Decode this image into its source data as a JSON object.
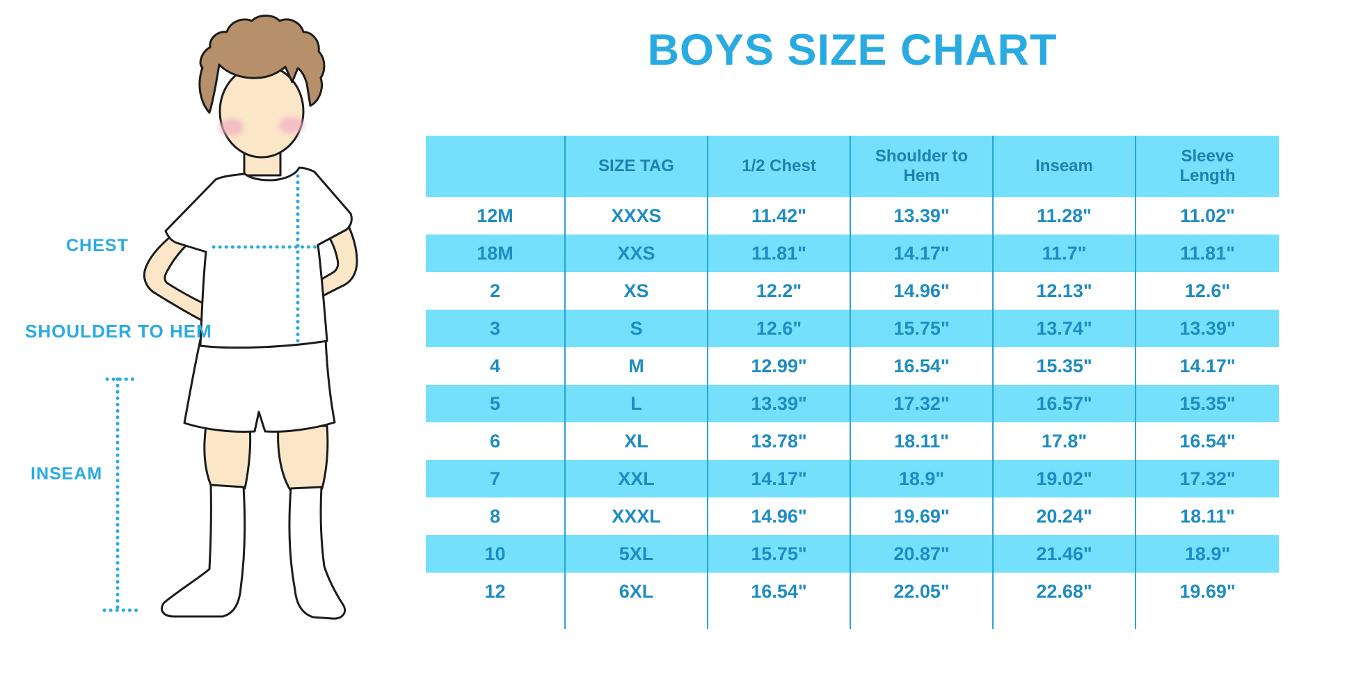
{
  "title": "BOYS SIZE CHART",
  "diagram": {
    "labels": {
      "chest": "CHEST",
      "shoulder_to_hem": "SHOULDER TO HEM",
      "inseam": "INSEAM"
    },
    "figure": "boy-in-tshirt-shorts-and-knee-socks"
  },
  "colors": {
    "title_blue": "#29ABE2",
    "label_blue": "#29ABE2",
    "table_stripe": "#74E0FB",
    "table_grid": "#2AA4D6",
    "table_header_text": "#1F80B0",
    "table_body_text": "#1E8CC2",
    "skin": "#FBE7C8",
    "hair": "#B5906B",
    "blush": "#F2B3C4",
    "outline": "#1C1C1C"
  },
  "chart_data": {
    "type": "table",
    "title": "BOYS SIZE CHART",
    "columns": [
      "",
      "SIZE TAG",
      "1/2 Chest",
      "Shoulder to Hem",
      "Inseam",
      "Sleeve Length"
    ],
    "rows": [
      [
        "12M",
        "XXXS",
        "11.42\"",
        "13.39\"",
        "11.28\"",
        "11.02\""
      ],
      [
        "18M",
        "XXS",
        "11.81\"",
        "14.17\"",
        "11.7\"",
        "11.81\""
      ],
      [
        "2",
        "XS",
        "12.2\"",
        "14.96\"",
        "12.13\"",
        "12.6\""
      ],
      [
        "3",
        "S",
        "12.6\"",
        "15.75\"",
        "13.74\"",
        "13.39\""
      ],
      [
        "4",
        "M",
        "12.99\"",
        "16.54\"",
        "15.35\"",
        "14.17\""
      ],
      [
        "5",
        "L",
        "13.39\"",
        "17.32\"",
        "16.57\"",
        "15.35\""
      ],
      [
        "6",
        "XL",
        "13.78\"",
        "18.11\"",
        "17.8\"",
        "16.54\""
      ],
      [
        "7",
        "XXL",
        "14.17\"",
        "18.9\"",
        "19.02\"",
        "17.32\""
      ],
      [
        "8",
        "XXXL",
        "14.96\"",
        "19.69\"",
        "20.24\"",
        "18.11\""
      ],
      [
        "10",
        "5XL",
        "15.75\"",
        "20.87\"",
        "21.46\"",
        "18.9\""
      ],
      [
        "12",
        "6XL",
        "16.54\"",
        "22.05\"",
        "22.68\"",
        "19.69\""
      ]
    ],
    "layout": {
      "stripe_pattern": "header-and-even-rows-light-cyan",
      "grid": "vertical-column-separators-only",
      "units": "inches"
    }
  }
}
